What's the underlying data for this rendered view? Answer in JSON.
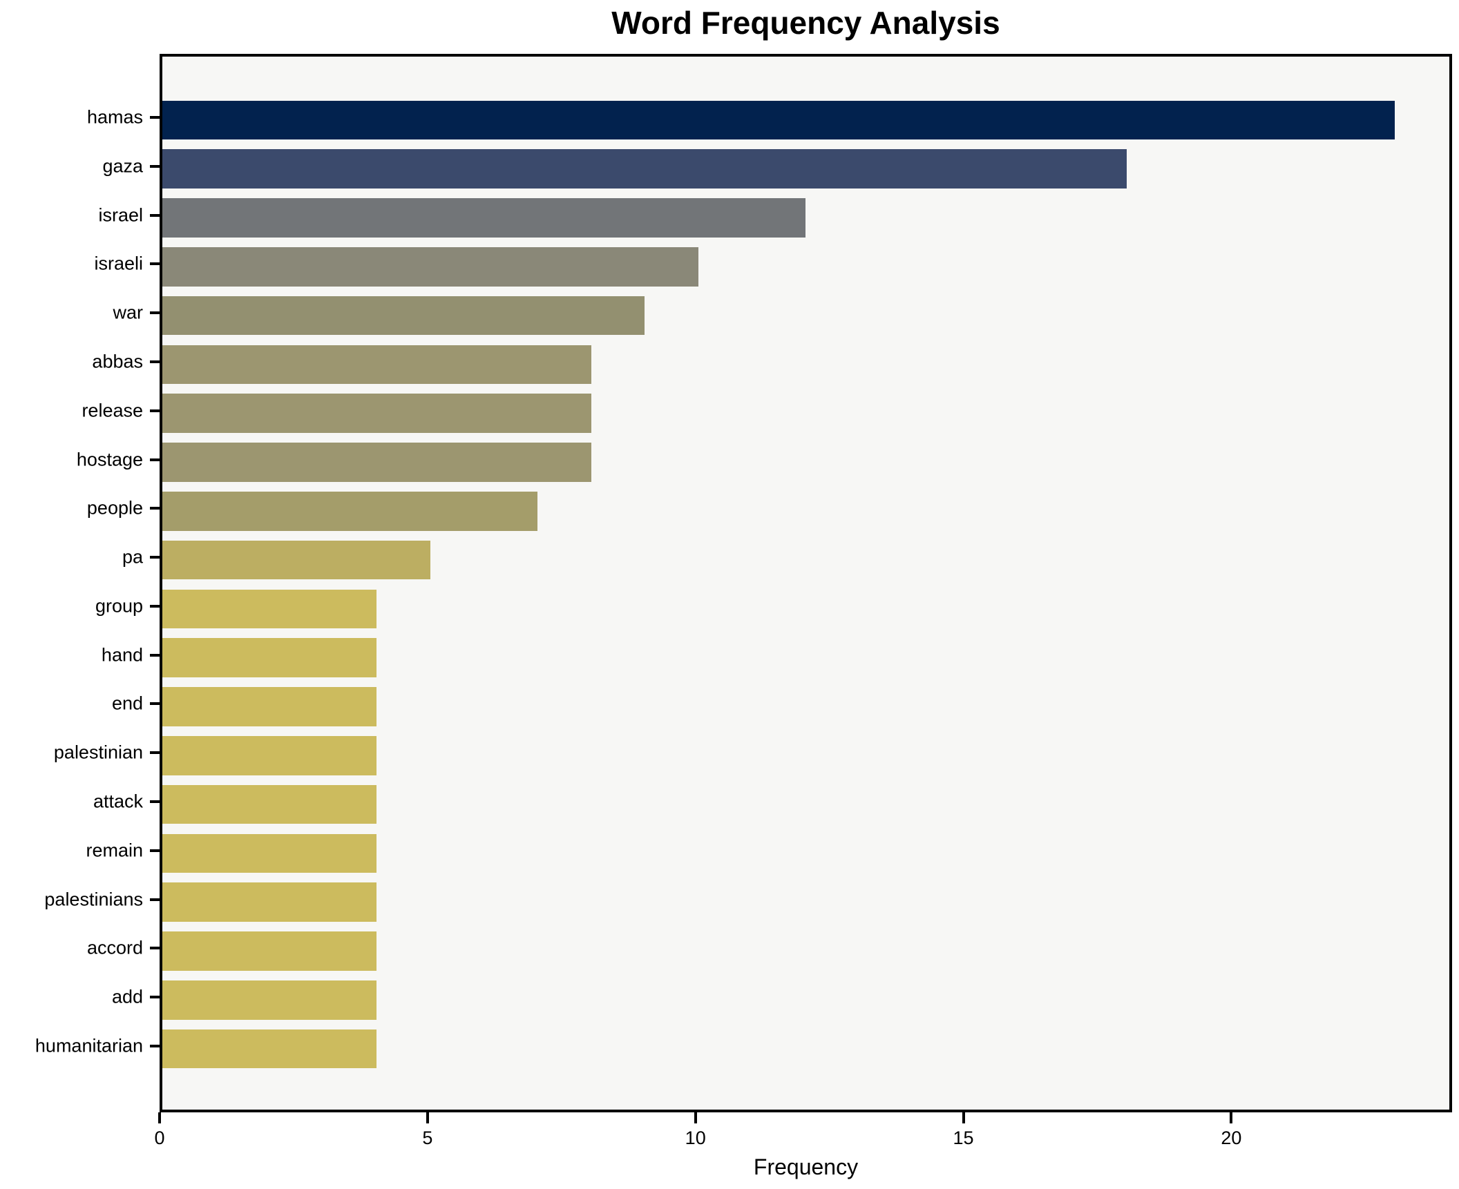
{
  "chart_data": {
    "type": "bar",
    "orientation": "horizontal",
    "title": "Word Frequency Analysis",
    "xlabel": "Frequency",
    "ylabel": "",
    "categories": [
      "hamas",
      "gaza",
      "israel",
      "israeli",
      "war",
      "abbas",
      "release",
      "hostage",
      "people",
      "pa",
      "group",
      "hand",
      "end",
      "palestinian",
      "attack",
      "remain",
      "palestinians",
      "accord",
      "add",
      "humanitarian"
    ],
    "values": [
      23,
      18,
      12,
      10,
      9,
      8,
      8,
      8,
      7,
      5,
      4,
      4,
      4,
      4,
      4,
      4,
      4,
      4,
      4,
      4
    ],
    "bar_colors": [
      "#02224e",
      "#3b4a6c",
      "#727578",
      "#8a8878",
      "#939070",
      "#9c9670",
      "#9c9670",
      "#9c9670",
      "#a49d6a",
      "#bcae62",
      "#ccbb5e",
      "#ccbb5e",
      "#ccbb5e",
      "#ccbb5e",
      "#ccbb5e",
      "#ccbb5e",
      "#ccbb5e",
      "#ccbb5e",
      "#ccbb5e",
      "#ccbb5e"
    ],
    "xlim": [
      0,
      24.12
    ],
    "x_ticks": [
      "0",
      "5",
      "10",
      "15",
      "20"
    ],
    "x_tick_values": [
      0,
      5,
      10,
      15,
      20
    ],
    "grid": false,
    "legend": "none",
    "plot_background": "#f7f7f5",
    "figure_background": "#ffffff",
    "spine_color": "#000000",
    "text_color": "#000000"
  }
}
